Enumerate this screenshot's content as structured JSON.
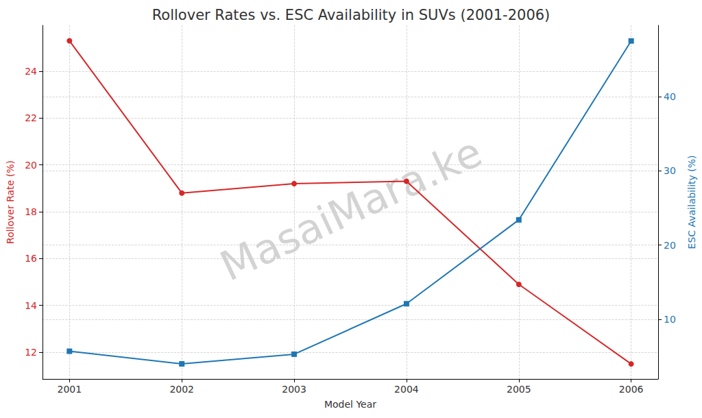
{
  "chart_data": {
    "type": "line",
    "title": "Rollover Rates vs. ESC Availability in SUVs (2001-2006)",
    "x_label": "Model Year",
    "y_label": "Rollover Rate (%)",
    "y2_label": "ESC Availability (%)",
    "watermark": "MasaiMara.ke",
    "x": [
      2001,
      2002,
      2003,
      2004,
      2005,
      2006
    ],
    "xlim": [
      2000.76,
      2006.24
    ],
    "xticks": [
      2001,
      2002,
      2003,
      2004,
      2005,
      2006
    ],
    "series": [
      {
        "name": "Rollover Rate (%)",
        "color": "#d62728",
        "marker": "circle",
        "values": [
          25.3,
          18.8,
          19.2,
          19.3,
          14.9,
          11.5
        ]
      },
      {
        "name": "ESC Availability (%)",
        "color": "#1f77b4",
        "marker": "square",
        "axis": "y2",
        "values": [
          5.7,
          4.0,
          5.3,
          12.1,
          23.4,
          47.5
        ]
      }
    ],
    "ylim": [
      10.86,
      25.96
    ],
    "yticks": [
      12,
      14,
      16,
      18,
      20,
      22,
      24
    ],
    "y2lim": [
      1.97,
      49.6
    ],
    "y2ticks": [
      10,
      20,
      30,
      40
    ],
    "grid": true
  }
}
